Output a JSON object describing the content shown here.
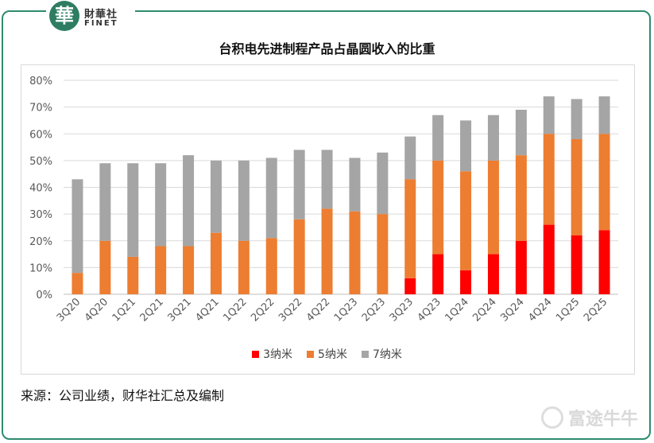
{
  "brand": {
    "seal_char": "華",
    "name_cn": "財華社",
    "name_en": "FINET",
    "footer_watermark": "富途牛牛",
    "accent_color": "#2e7d63"
  },
  "chart_data": {
    "type": "bar",
    "stacked": true,
    "title": "台积电先进制程产品占晶圆收入的比重",
    "xlabel": "",
    "ylabel": "",
    "ylim": [
      0,
      80
    ],
    "yticks": [
      "0%",
      "10%",
      "20%",
      "30%",
      "40%",
      "50%",
      "60%",
      "70%",
      "80%"
    ],
    "grid": true,
    "legend_position": "bottom",
    "categories": [
      "3Q20",
      "4Q20",
      "1Q21",
      "2Q21",
      "3Q21",
      "4Q21",
      "1Q22",
      "2Q22",
      "3Q22",
      "4Q22",
      "1Q23",
      "2Q23",
      "3Q23",
      "4Q23",
      "1Q24",
      "2Q24",
      "3Q24",
      "4Q24",
      "1Q25",
      "2Q25"
    ],
    "series": [
      {
        "name": "3纳米",
        "color": "#ff0000",
        "values": [
          0,
          0,
          0,
          0,
          0,
          0,
          0,
          0,
          0,
          0,
          0,
          0,
          6,
          15,
          9,
          15,
          20,
          26,
          22,
          24
        ]
      },
      {
        "name": "5纳米",
        "color": "#ed7d31",
        "values": [
          8,
          20,
          14,
          18,
          18,
          23,
          20,
          21,
          28,
          32,
          31,
          30,
          37,
          35,
          37,
          35,
          32,
          34,
          36,
          36
        ]
      },
      {
        "name": "7纳米",
        "color": "#a5a5a5",
        "values": [
          35,
          29,
          35,
          31,
          34,
          27,
          30,
          30,
          26,
          22,
          20,
          23,
          16,
          17,
          19,
          17,
          17,
          14,
          15,
          14
        ]
      }
    ]
  },
  "source_note": "来源：公司业绩，财华社汇总及编制"
}
